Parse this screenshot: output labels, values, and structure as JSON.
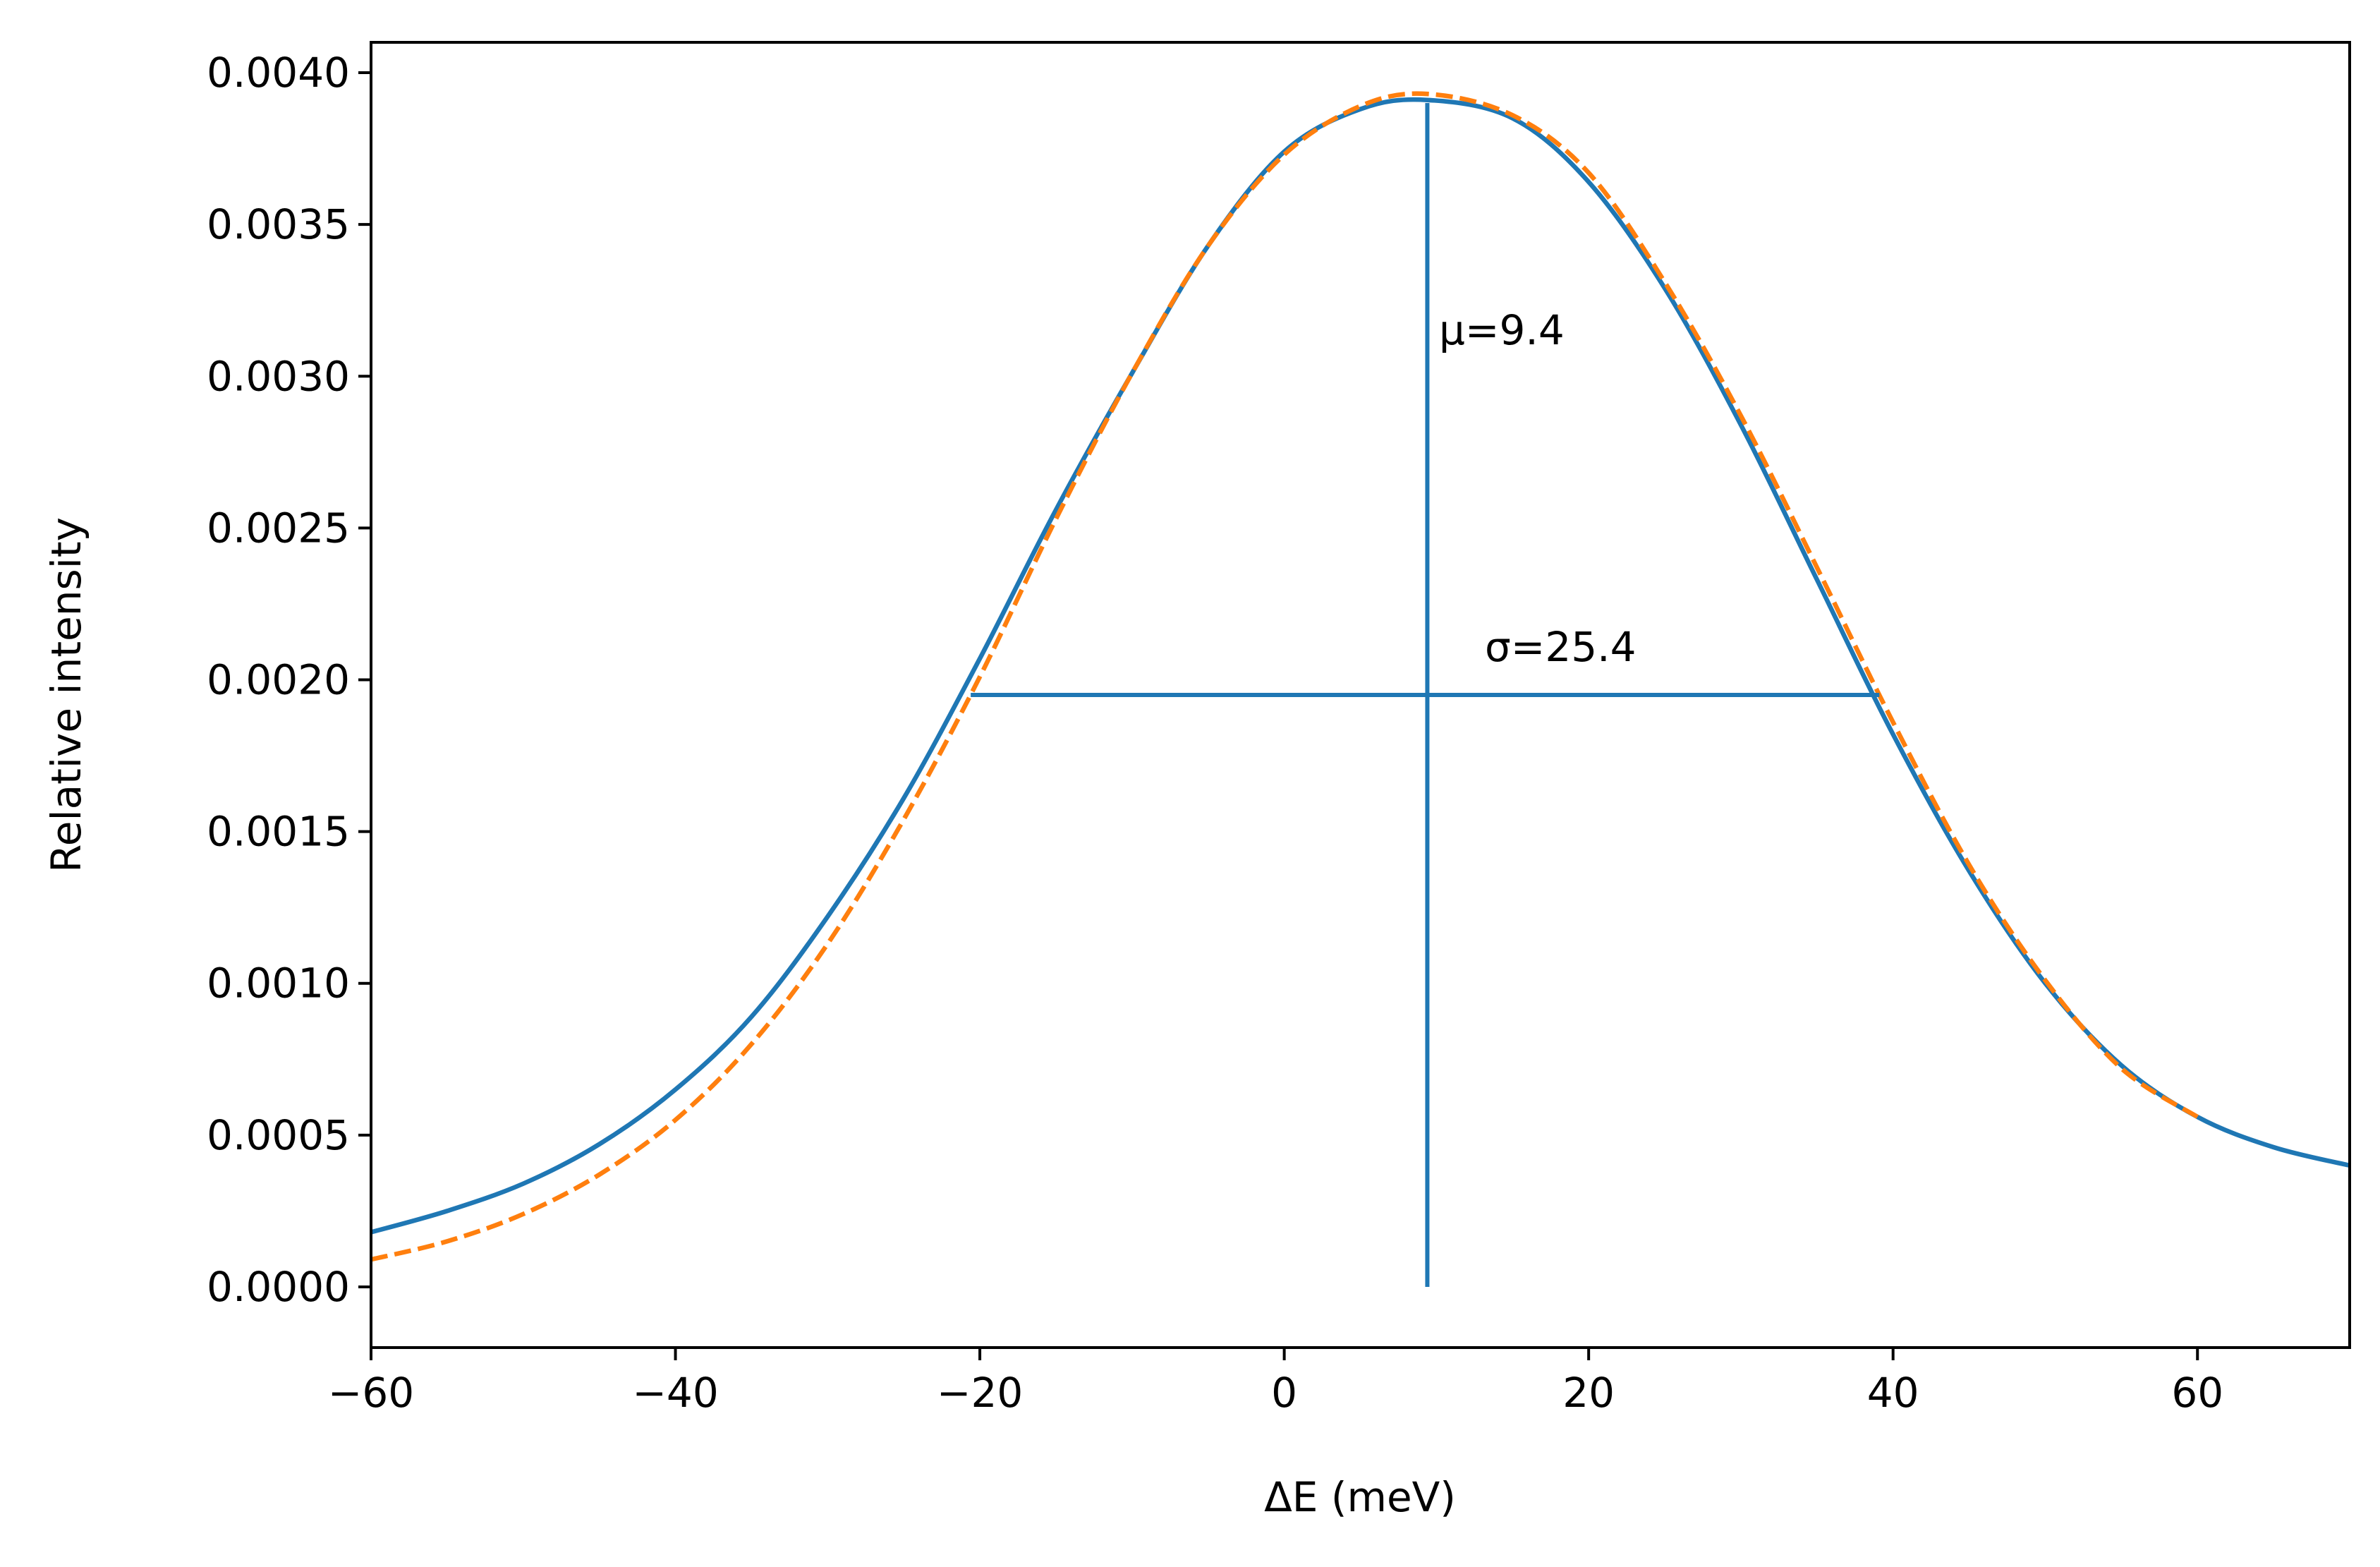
{
  "chart_data": {
    "type": "line",
    "xlabel": "ΔE (meV)",
    "ylabel": "Relative intensity",
    "xlim": [
      -60,
      70
    ],
    "ylim": [
      -0.0002,
      0.0041
    ],
    "xticks": [
      -60,
      -40,
      -20,
      0,
      20,
      40,
      60
    ],
    "xtick_labels": [
      "−60",
      "−40",
      "−20",
      "0",
      "20",
      "40",
      "60"
    ],
    "yticks": [
      0,
      0.0005,
      0.001,
      0.0015,
      0.002,
      0.0025,
      0.003,
      0.0035,
      0.004
    ],
    "ytick_labels": [
      "0.0000",
      "0.0005",
      "0.0010",
      "0.0015",
      "0.0020",
      "0.0025",
      "0.0030",
      "0.0035",
      "0.0040"
    ],
    "grid": false,
    "series": [
      {
        "style": "solid",
        "color": "#1f77b4",
        "x": [
          -60,
          -55,
          -50,
          -45,
          -40,
          -35,
          -30,
          -25,
          -20,
          -15,
          -10,
          -5,
          0,
          5,
          9.4,
          15,
          20,
          25,
          30,
          35,
          40,
          45,
          50,
          55,
          60,
          65,
          70
        ],
        "y": [
          0.00018,
          0.00025,
          0.00034,
          0.00047,
          0.00065,
          0.00089,
          0.00122,
          0.00161,
          0.00207,
          0.00256,
          0.00301,
          0.00343,
          0.00374,
          0.00388,
          0.00391,
          0.00385,
          0.00364,
          0.00329,
          0.00284,
          0.00233,
          0.00182,
          0.00137,
          0.001,
          0.00073,
          0.00056,
          0.00046,
          0.0004
        ]
      },
      {
        "style": "dashed",
        "color": "#ff7f0e",
        "x": [
          -60,
          -55,
          -50,
          -45,
          -40,
          -35,
          -30,
          -25,
          -20,
          -15,
          -10,
          -5,
          0,
          5,
          9.4,
          15,
          20,
          25,
          30,
          35,
          40,
          45,
          50,
          55,
          60
        ],
        "y": [
          9e-05,
          0.00015,
          0.00024,
          0.00037,
          0.00055,
          0.0008,
          0.00113,
          0.00154,
          0.00201,
          0.00253,
          0.00301,
          0.00343,
          0.00373,
          0.00389,
          0.00393,
          0.00386,
          0.00367,
          0.00331,
          0.00287,
          0.00237,
          0.00186,
          0.00139,
          0.00101,
          0.00072,
          0.00056
        ]
      }
    ],
    "markers": {
      "color": "#1f77b4",
      "mu": 9.4,
      "mu_line": {
        "x": 9.4,
        "y0": 0,
        "y1": 0.0039
      },
      "sigma_line": {
        "x0": -20.6,
        "x1": 39.1,
        "y": 0.00195
      }
    },
    "annotations": {
      "mu_label": "μ=9.4",
      "sigma_label": "σ=25.4"
    }
  }
}
